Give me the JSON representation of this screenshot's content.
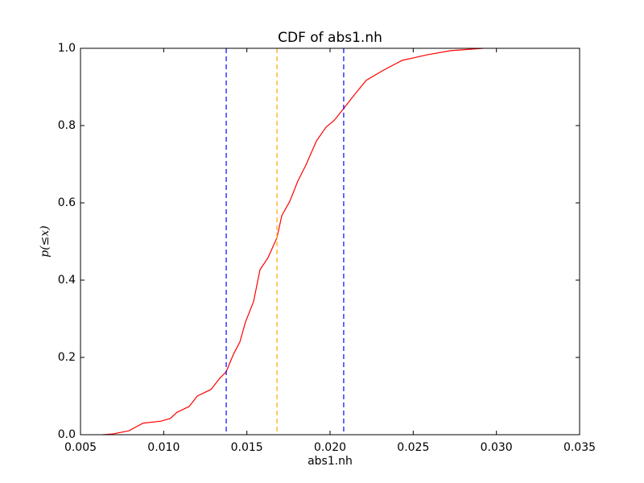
{
  "chart_data": {
    "type": "line",
    "title": "CDF of abs1.nh",
    "xlabel": "abs1.nh",
    "ylabel": "p(≤x)",
    "x": [
      0.00635,
      0.00694,
      0.0079,
      0.00877,
      0.00984,
      0.0104,
      0.0108,
      0.01153,
      0.01202,
      0.01284,
      0.01337,
      0.01376,
      0.01419,
      0.01458,
      0.01492,
      0.0154,
      0.01579,
      0.01627,
      0.01681,
      0.0171,
      0.01758,
      0.01806,
      0.01855,
      0.01918,
      0.01976,
      0.02024,
      0.02082,
      0.02145,
      0.02217,
      0.02315,
      0.02435,
      0.02581,
      0.02726,
      0.0292
    ],
    "series": [
      {
        "color": "#ff0000",
        "values": [
          0,
          0.002,
          0.01,
          0.03,
          0.035,
          0.042,
          0.058,
          0.073,
          0.1,
          0.117,
          0.146,
          0.163,
          0.208,
          0.24,
          0.292,
          0.344,
          0.427,
          0.458,
          0.51,
          0.567,
          0.604,
          0.656,
          0.698,
          0.76,
          0.796,
          0.813,
          0.844,
          0.879,
          0.917,
          0.942,
          0.969,
          0.983,
          0.994,
          1.0
        ]
      }
    ],
    "vlines": [
      {
        "x": 0.01376,
        "color": "#0000ff"
      },
      {
        "x": 0.01681,
        "color": "#ffa500"
      },
      {
        "x": 0.02082,
        "color": "#0000ff"
      }
    ],
    "xlim": [
      0.005,
      0.035
    ],
    "xticks": [
      0.005,
      {
        "value": 0.01,
        "label": "0.010"
      },
      0.015,
      {
        "value": 0.02,
        "label": "0.020"
      },
      0.025,
      {
        "value": 0.03,
        "label": "0.030"
      },
      0.035
    ],
    "ylim": [
      0,
      1
    ],
    "yticks": [
      {
        "value": 0,
        "label": "0.0"
      },
      0.2,
      0.4,
      0.6,
      0.8,
      {
        "value": 1,
        "label": "1.0"
      }
    ]
  }
}
